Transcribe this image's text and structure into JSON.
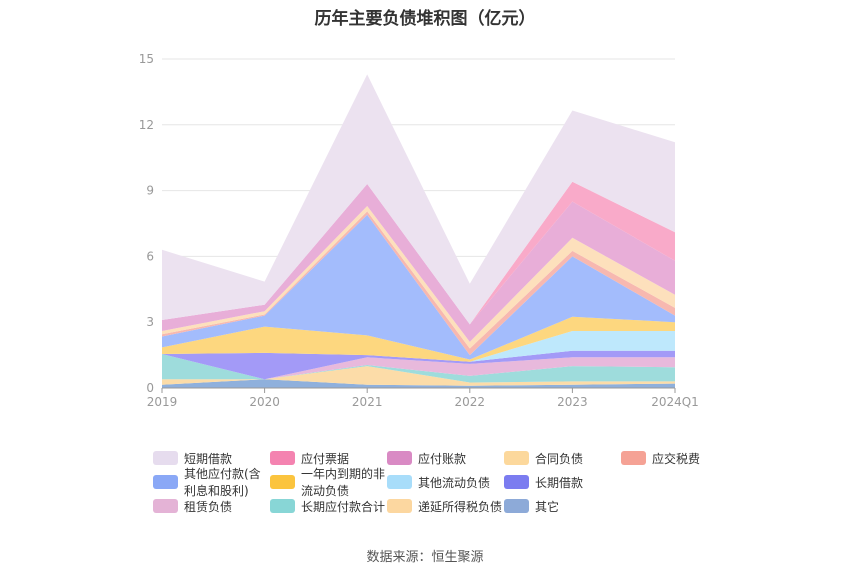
{
  "title": "历年主要负债堆积图（亿元）",
  "source": "数据来源：恒生聚源",
  "chart_data": {
    "type": "area",
    "stacked": true,
    "title": "历年主要负债堆积图（亿元）",
    "categories": [
      "2019",
      "2020",
      "2021",
      "2022",
      "2023",
      "2024Q1"
    ],
    "ylim": [
      0,
      15
    ],
    "yticks": [
      0,
      3,
      6,
      9,
      12,
      15
    ],
    "grid": true,
    "legend_position": "bottom",
    "series": [
      {
        "name": "其它",
        "color": "#8fb0dc",
        "values": [
          0.15,
          0.4,
          0.15,
          0.1,
          0.15,
          0.2
        ]
      },
      {
        "name": "递延所得税负债",
        "color": "#fcdca8",
        "values": [
          0.25,
          0.0,
          0.85,
          0.15,
          0.15,
          0.1
        ]
      },
      {
        "name": "长期应付款合计",
        "color": "#9edcdc",
        "values": [
          1.15,
          0.0,
          0.05,
          0.3,
          0.7,
          0.65
        ]
      },
      {
        "name": "租赁负债",
        "color": "#e8b9dc",
        "values": [
          0.0,
          0.0,
          0.35,
          0.55,
          0.4,
          0.45
        ]
      },
      {
        "name": "长期借款",
        "color": "#a39af7",
        "values": [
          0.0,
          1.2,
          0.1,
          0.1,
          0.3,
          0.3
        ]
      },
      {
        "name": "其他流动负债",
        "color": "#bee8fc",
        "values": [
          0.0,
          0.0,
          0.0,
          0.0,
          0.9,
          0.9
        ]
      },
      {
        "name": "一年内到期的非流动负债",
        "color": "#fdd77f",
        "values": [
          0.3,
          1.2,
          0.9,
          0.1,
          0.65,
          0.4
        ]
      },
      {
        "name": "其他应付款(含利息和股利)",
        "color": "#a3bcfc",
        "values": [
          0.5,
          0.5,
          5.5,
          0.2,
          2.75,
          0.3
        ]
      },
      {
        "name": "应交税费",
        "color": "#f7b8b0",
        "values": [
          0.1,
          0.05,
          0.15,
          0.3,
          0.25,
          0.35
        ]
      },
      {
        "name": "合同负债",
        "color": "#fde0bc",
        "values": [
          0.15,
          0.15,
          0.25,
          0.3,
          0.6,
          0.6
        ]
      },
      {
        "name": "应付账款",
        "color": "#e8aed8",
        "values": [
          0.5,
          0.3,
          1.0,
          0.8,
          1.65,
          1.55
        ]
      },
      {
        "name": "应付票据",
        "color": "#f9aac9",
        "values": [
          0.0,
          0.0,
          0.0,
          0.0,
          0.9,
          1.3
        ]
      },
      {
        "name": "短期借款",
        "color": "#ece2f0",
        "values": [
          3.2,
          1.05,
          5.0,
          1.85,
          3.25,
          4.1
        ]
      }
    ]
  },
  "legend": [
    [
      "短期借款",
      "应付票据",
      "应付账款",
      "合同负债",
      "应交税费"
    ],
    [
      "其他应付款(含利息和股利)",
      "一年内到期的非流动负债",
      "其他流动负债",
      "长期借款"
    ],
    [
      "租赁负债",
      "长期应付款合计",
      "递延所得税负债",
      "其它"
    ]
  ],
  "legend_colors": {
    "短期借款": "#e6dcee",
    "应付票据": "#f483b0",
    "应付账款": "#d98ac4",
    "合同负债": "#fcd89c",
    "应交税费": "#f5a295",
    "其他应付款(含利息和股利)": "#8aa8f6",
    "一年内到期的非流动负债": "#fbc43e",
    "其他流动负债": "#a8ddfa",
    "长期借款": "#7b7cf0",
    "租赁负债": "#e4b3d6",
    "长期应付款合计": "#88d6d6",
    "递延所得税负债": "#fcd7a0",
    "其它": "#8daad8"
  }
}
